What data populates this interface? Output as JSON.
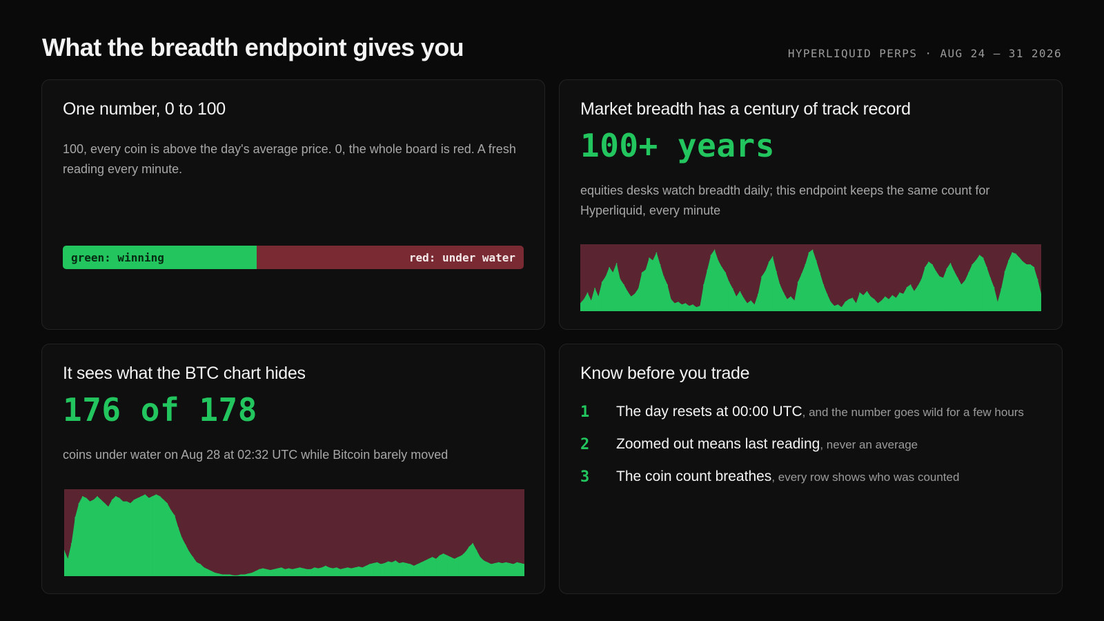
{
  "header": {
    "title": "What the breadth endpoint gives you",
    "meta": "HYPERLIQUID PERPS · AUG 24 – 31 2026"
  },
  "card1": {
    "title": "One number, 0 to 100",
    "body": "100, every coin is above the day's average price. 0, the whole board is red. A fresh reading every minute.",
    "bar": {
      "green_label": "green: winning",
      "red_label": "red: under water",
      "green_share": 0.42,
      "green_color": "#22c55e",
      "red_color": "#7a2a32"
    }
  },
  "card2": {
    "title": "Market breadth has a century of track record",
    "big_number": "100+ years",
    "body": "equities desks watch breadth daily; this endpoint keeps the same count for Hyperliquid, every minute",
    "chart_data": {
      "type": "area",
      "ylim": [
        0,
        100
      ],
      "series": [
        {
          "values": [
            12,
            18,
            28,
            16,
            35,
            22,
            44,
            52,
            66,
            58,
            72,
            48,
            40,
            30,
            22,
            26,
            34,
            58,
            62,
            80,
            76,
            88,
            70,
            52,
            40,
            18,
            12,
            14,
            10,
            12,
            8,
            10,
            6,
            8,
            40,
            62,
            84,
            92,
            76,
            66,
            58,
            44,
            34,
            22,
            30,
            20,
            12,
            16,
            10,
            26,
            52,
            60,
            74,
            82,
            60,
            40,
            28,
            18,
            22,
            16,
            44,
            56,
            70,
            88,
            92,
            76,
            58,
            40,
            26,
            14,
            8,
            10,
            6,
            14,
            18,
            20,
            12,
            28,
            24,
            30,
            22,
            18,
            12,
            16,
            22,
            18,
            24,
            20,
            28,
            26,
            36,
            40,
            30,
            38,
            48,
            66,
            74,
            70,
            60,
            52,
            50,
            64,
            72,
            60,
            50,
            40,
            46,
            58,
            70,
            76,
            84,
            80,
            66,
            50,
            36,
            14,
            34,
            60,
            76,
            88,
            86,
            80,
            74,
            70,
            70,
            66,
            48,
            26
          ]
        }
      ],
      "colors": {
        "winning": "#22c55e",
        "background": "#5a2430"
      }
    }
  },
  "card3": {
    "title": "It sees what the BTC chart hides",
    "big_number": "176 of 178",
    "body": "coins under water on Aug 28 at 02:32 UTC while Bitcoin barely moved",
    "chart_data": {
      "type": "area",
      "ylim": [
        0,
        100
      ],
      "series": [
        {
          "values": [
            30,
            20,
            38,
            68,
            84,
            92,
            90,
            86,
            88,
            92,
            88,
            84,
            80,
            88,
            92,
            90,
            86,
            86,
            84,
            88,
            90,
            92,
            94,
            90,
            92,
            94,
            92,
            88,
            84,
            76,
            70,
            56,
            44,
            36,
            28,
            22,
            16,
            14,
            10,
            8,
            6,
            4,
            3,
            2,
            2,
            2,
            1,
            1,
            2,
            2,
            3,
            4,
            6,
            8,
            9,
            8,
            7,
            8,
            9,
            10,
            8,
            9,
            8,
            9,
            10,
            9,
            8,
            8,
            10,
            9,
            10,
            12,
            10,
            9,
            10,
            8,
            9,
            10,
            9,
            10,
            11,
            10,
            12,
            14,
            15,
            16,
            14,
            15,
            17,
            16,
            18,
            15,
            16,
            15,
            14,
            12,
            14,
            16,
            18,
            20,
            22,
            20,
            24,
            26,
            24,
            22,
            20,
            22,
            24,
            28,
            34,
            38,
            30,
            22,
            18,
            16,
            14,
            15,
            16,
            15,
            16,
            15,
            14,
            16,
            15,
            14
          ]
        }
      ],
      "colors": {
        "winning": "#22c55e",
        "background": "#5a2430"
      }
    }
  },
  "card4": {
    "title": "Know before you trade",
    "steps": [
      {
        "num": "1",
        "strong": "The day resets at 00:00 UTC",
        "light": ", and the number goes wild for a few hours"
      },
      {
        "num": "2",
        "strong": "Zoomed out means last reading",
        "light": ", never an average"
      },
      {
        "num": "3",
        "strong": "The coin count breathes",
        "light": ", every row shows who was counted"
      }
    ]
  }
}
